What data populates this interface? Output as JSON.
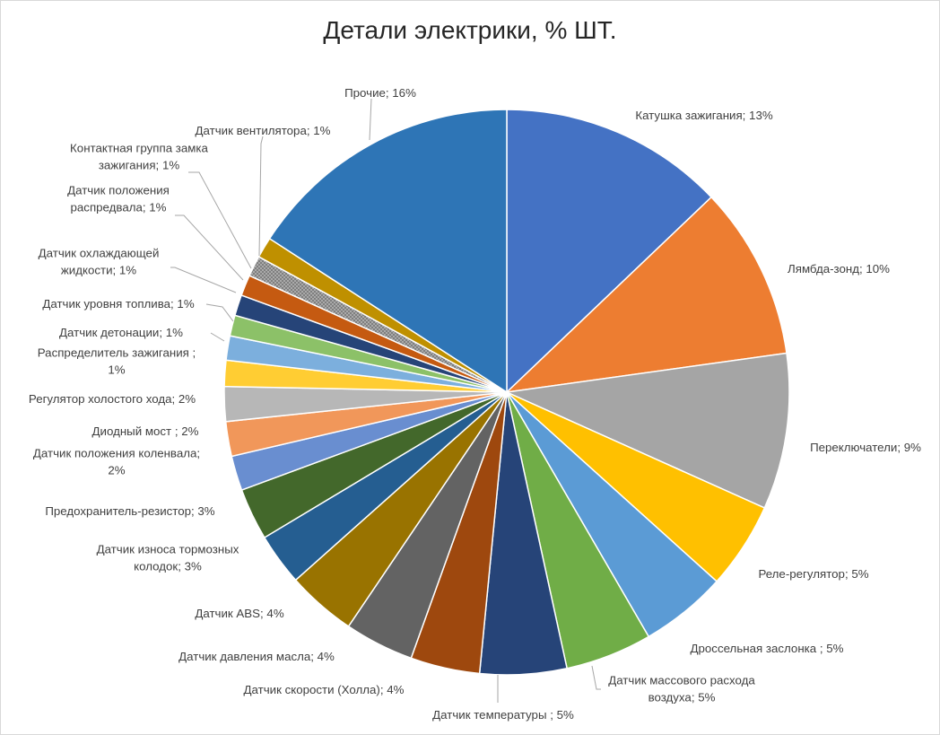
{
  "chart_data": {
    "type": "pie",
    "title": "Детали электрики, % ШТ.",
    "start_angle_deg": 0,
    "direction": "clockwise",
    "slices": [
      {
        "name": "Катушка зажигания",
        "value": 13,
        "color": "#4472C4",
        "label": [
          "Катушка зажигания; 13%"
        ]
      },
      {
        "name": "Лямбда-зонд",
        "value": 10,
        "color": "#ED7D31",
        "label": [
          "Лямбда-зонд; 10%"
        ]
      },
      {
        "name": "Переключатели",
        "value": 9,
        "color": "#A5A5A5",
        "label": [
          "Переключатели; 9%"
        ]
      },
      {
        "name": "Реле-регулятор",
        "value": 5,
        "color": "#FFC000",
        "label": [
          "Реле-регулятор; 5%"
        ]
      },
      {
        "name": "Дроссельная заслонка ",
        "value": 5,
        "color": "#5B9BD5",
        "label": [
          "Дроссельная заслонка ; 5%"
        ]
      },
      {
        "name": "Датчик массового расхода воздуха",
        "value": 5,
        "color": "#70AD47",
        "label": [
          "Датчик массового расхода",
          "воздуха; 5%"
        ]
      },
      {
        "name": "Датчик температуры ",
        "value": 5,
        "color": "#264478",
        "label": [
          "Датчик температуры ; 5%"
        ]
      },
      {
        "name": "Датчик скорости (Холла)",
        "value": 4,
        "color": "#9E480E",
        "label": [
          "Датчик скорости (Холла); 4%"
        ]
      },
      {
        "name": "Датчик давления масла",
        "value": 4,
        "color": "#636363",
        "label": [
          "Датчик давления масла; 4%"
        ]
      },
      {
        "name": "Датчик ABS",
        "value": 4,
        "color": "#997300",
        "label": [
          "Датчик ABS; 4%"
        ]
      },
      {
        "name": "Датчик износа тормозных колодок",
        "value": 3,
        "color": "#255E91",
        "label": [
          "Датчик износа тормозных",
          "колодок; 3%"
        ]
      },
      {
        "name": "Предохранитель-резистор",
        "value": 3,
        "color": "#43682B",
        "label": [
          "Предохранитель-резистор; 3%"
        ]
      },
      {
        "name": "Датчик положения коленвала",
        "value": 2,
        "color": "#698ED0",
        "label": [
          "Датчик положения коленвала;",
          "2%"
        ]
      },
      {
        "name": "Диодный мост ",
        "value": 2,
        "color": "#F1975A",
        "label": [
          "Диодный мост ; 2%"
        ]
      },
      {
        "name": "Регулятор холостого хода",
        "value": 2,
        "color": "#B7B7B7",
        "label": [
          "Регулятор холостого хода; 2%"
        ]
      },
      {
        "name": "Распределитель зажигания ",
        "value": 1.5,
        "color": "#FFCD33",
        "label": [
          "Распределитель зажигания ;",
          "1%"
        ]
      },
      {
        "name": "Датчик детонации",
        "value": 1.4,
        "color": "#7CAFDD",
        "label": [
          "Датчик детонации; 1%"
        ]
      },
      {
        "name": "Датчик уровня топлива",
        "value": 1.2,
        "color": "#8CC168",
        "label": [
          "Датчик уровня топлива; 1%"
        ]
      },
      {
        "name": "Датчик охлаждающей жидкости",
        "value": 1.2,
        "color": "#264478",
        "label": [
          "Датчик охлаждающей",
          "жидкости; 1%"
        ]
      },
      {
        "name": "Датчик положения распредвала",
        "value": 1.2,
        "color": "#C55A11",
        "label": [
          "Датчик положения",
          "распредвала; 1%"
        ]
      },
      {
        "name": "Контактная группа замка зажигания",
        "value": 1.2,
        "color": "#7F7F7F",
        "pattern": true,
        "label": [
          "Контактная группа замка",
          "зажигания; 1%"
        ]
      },
      {
        "name": "Датчик вентилятора",
        "value": 1.2,
        "color": "#BF9000",
        "label": [
          "Датчик вентилятора; 1%"
        ]
      },
      {
        "name": "Прочие",
        "value": 16,
        "color": "#2E75B6",
        "label": [
          "Прочие; 16%"
        ]
      }
    ]
  }
}
